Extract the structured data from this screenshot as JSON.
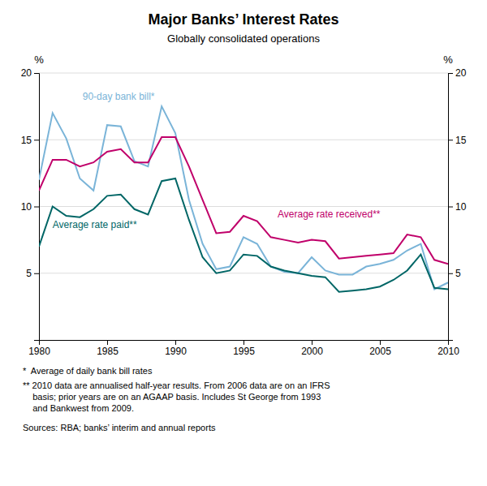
{
  "chart_data": {
    "type": "line",
    "title": "Major Banks’ Interest Rates",
    "subtitle": "Globally consolidated operations",
    "ylabel": "%",
    "y2label": "%",
    "x": [
      1980,
      1981,
      1982,
      1983,
      1984,
      1985,
      1986,
      1987,
      1988,
      1989,
      1990,
      1991,
      1992,
      1993,
      1994,
      1995,
      1996,
      1997,
      1998,
      1999,
      2000,
      2001,
      2002,
      2003,
      2004,
      2005,
      2006,
      2007,
      2008,
      2009,
      2010
    ],
    "series": [
      {
        "color": "#7ab4d8",
        "values": [
          12.0,
          17.0,
          15.1,
          12.1,
          11.2,
          16.1,
          16.0,
          13.4,
          13.0,
          17.5,
          15.5,
          10.5,
          7.2,
          5.3,
          5.5,
          7.7,
          7.2,
          5.5,
          5.1,
          5.0,
          6.2,
          5.2,
          4.9,
          4.9,
          5.5,
          5.7,
          6.0,
          6.7,
          7.2,
          3.8,
          4.3
        ]
      },
      {
        "color": "#c0006a",
        "values": [
          11.2,
          13.5,
          13.5,
          13.0,
          13.3,
          14.1,
          14.3,
          13.3,
          13.3,
          15.2,
          15.2,
          13.0,
          10.5,
          8.0,
          8.1,
          9.3,
          8.9,
          7.7,
          7.5,
          7.3,
          7.5,
          7.4,
          6.1,
          6.2,
          6.3,
          6.4,
          6.5,
          7.9,
          7.7,
          6.0,
          5.7
        ]
      },
      {
        "color": "#006666",
        "values": [
          7.0,
          10.0,
          9.3,
          9.2,
          9.8,
          10.8,
          10.9,
          9.8,
          9.4,
          11.9,
          12.1,
          9.0,
          6.2,
          5.0,
          5.2,
          6.4,
          6.3,
          5.5,
          5.2,
          5.0,
          4.8,
          4.7,
          3.6,
          3.7,
          3.8,
          4.0,
          4.5,
          5.2,
          6.4,
          3.9,
          3.8
        ]
      }
    ],
    "annotations": [
      {
        "text": "90-day bank bill*",
        "x": 1983.2,
        "y": 17.8,
        "color": "#7ab4d8"
      },
      {
        "text": "Average rate received**",
        "x": 1997.5,
        "y": 9.0,
        "color": "#c0006a"
      },
      {
        "text": "Average rate paid**",
        "x": 1981.0,
        "y": 8.2,
        "color": "#006666"
      }
    ],
    "notes": [
      "*  Average of daily bank bill rates",
      "** 2010 data are annualised half-year results. From 2006 data are on an IFRS\n    basis; prior years are on an AGAAP basis. Includes St George from 1993\n    and Bankwest from 2009.",
      "Sources: RBA; banks’ interim and annual reports"
    ],
    "xlim": [
      1980,
      2010
    ],
    "xticks": [
      1980,
      1985,
      1990,
      1995,
      2000,
      2005,
      2010
    ],
    "ylim": [
      0,
      20
    ],
    "yticks": [
      5,
      10,
      15,
      20
    ],
    "y2lim": [
      0,
      20
    ],
    "y2ticks": [
      5,
      10,
      15,
      20
    ],
    "grid": true
  }
}
